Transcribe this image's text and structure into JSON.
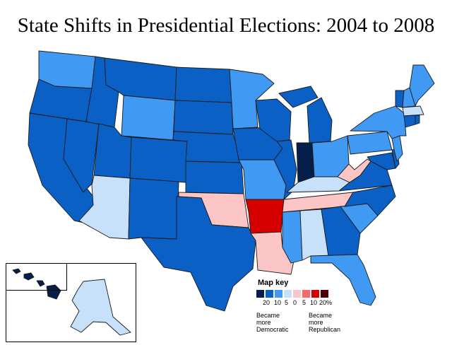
{
  "title": "State Shifts in Presidential Elections: 2004 to 2008",
  "colors": {
    "dem20": "#061f4a",
    "dem10": "#0a60c4",
    "dem5": "#4099f2",
    "dem0": "#c7e1fb",
    "rep0": "#fcc6c6",
    "rep5": "#f26c6c",
    "rep10": "#d70000",
    "rep20": "#4d0000",
    "water": "#ffffff"
  },
  "legend": {
    "title": "Map key",
    "ticks": [
      "20",
      "10",
      "5",
      "0",
      "5",
      "10",
      "20%"
    ],
    "left_note": [
      "Became",
      "more",
      "Democratic"
    ],
    "right_note": [
      "Became",
      "more",
      "Republican"
    ]
  }
}
